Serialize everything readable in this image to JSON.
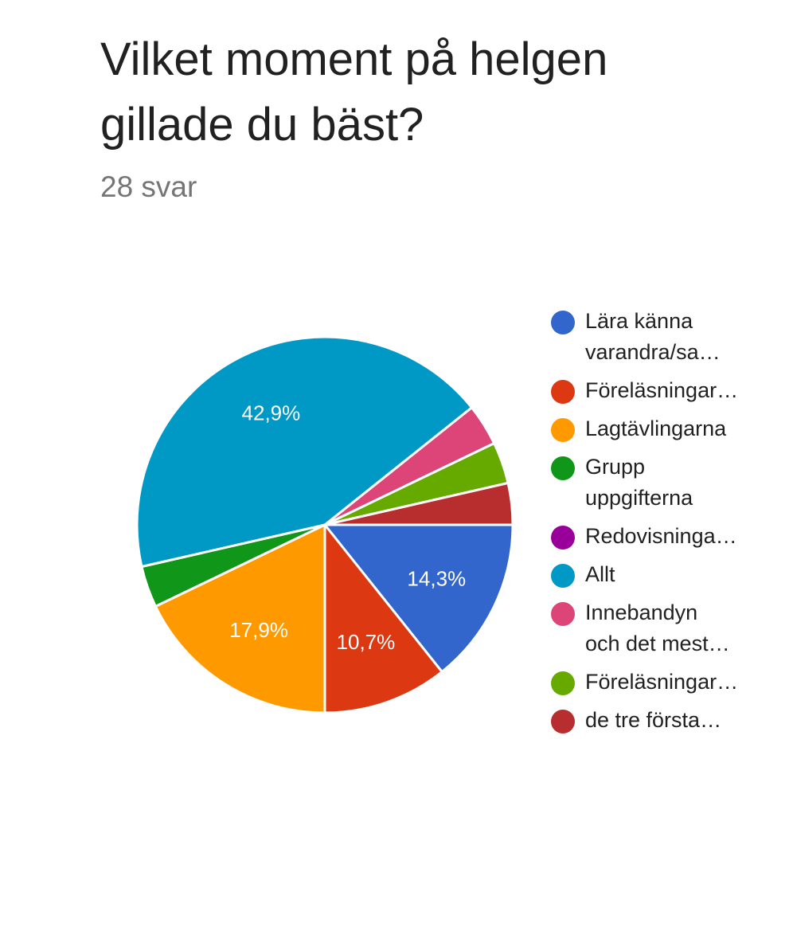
{
  "header": {
    "title": "Vilket moment på helgen gillade du bäst?",
    "response_count": "28 svar"
  },
  "chart_data": {
    "type": "pie",
    "title": "Vilket moment på helgen gillade du bäst?",
    "total_responses": 28,
    "start_angle": "3 o'clock, clockwise",
    "legend_position": "right",
    "slices": [
      {
        "label": "Lära känna varandra/sa…",
        "legend_lines": [
          "Lära känna",
          "varandra/sa…"
        ],
        "value": 4,
        "percent_label": "14,3%",
        "color": "#3366cc"
      },
      {
        "label": "Föreläsningar…",
        "legend_lines": [
          "Föreläsningar…"
        ],
        "value": 3,
        "percent_label": "10,7%",
        "color": "#dc3912"
      },
      {
        "label": "Lagtävlingarna",
        "legend_lines": [
          "Lagtävlingarna"
        ],
        "value": 5,
        "percent_label": "17,9%",
        "color": "#ff9900"
      },
      {
        "label": "Grupp uppgifterna",
        "legend_lines": [
          "Grupp",
          "uppgifterna"
        ],
        "value": 1,
        "percent_label": "",
        "color": "#109618"
      },
      {
        "label": "Redovisninga…",
        "legend_lines": [
          "Redovisninga…"
        ],
        "value": 0,
        "percent_label": "",
        "color": "#990099"
      },
      {
        "label": "Allt",
        "legend_lines": [
          "Allt"
        ],
        "value": 12,
        "percent_label": "42,9%",
        "color": "#0099c6"
      },
      {
        "label": "Innebandyn och det mest…",
        "legend_lines": [
          "Innebandyn",
          "och det mest…"
        ],
        "value": 1,
        "percent_label": "",
        "color": "#dd4477"
      },
      {
        "label": "Föreläsningar…",
        "legend_lines": [
          "Föreläsningar…"
        ],
        "value": 1,
        "percent_label": "",
        "color": "#66aa00"
      },
      {
        "label": "de tre första…",
        "legend_lines": [
          "de tre första…"
        ],
        "value": 1,
        "percent_label": "",
        "color": "#b82e2e"
      }
    ]
  }
}
